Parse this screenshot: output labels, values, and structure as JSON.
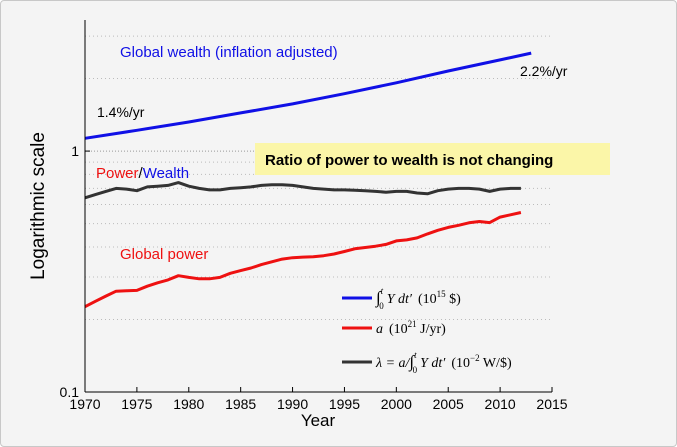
{
  "chart_data": {
    "type": "line",
    "title": "",
    "xlabel": "Year",
    "ylabel": "Logarithmic scale",
    "x_scale": "linear",
    "y_scale": "log",
    "xlim": [
      1970,
      2015
    ],
    "ylim": [
      0.1,
      3.5
    ],
    "x_ticks": [
      1970,
      1975,
      1980,
      1985,
      1990,
      1995,
      2000,
      2005,
      2010,
      2015
    ],
    "x_tick_labels": [
      "1970",
      "1975",
      "1980",
      "1985",
      "1990",
      "1995",
      "2000",
      "2005",
      "2010",
      "2015"
    ],
    "y_ticks": [
      0.1,
      1
    ],
    "y_tick_labels": [
      "0.1",
      "1"
    ],
    "grid": "y-dotted",
    "legend_position": "bottom-right",
    "series": [
      {
        "name": "∫₀ᵗ Y dt′ (10¹⁵ $)",
        "color": "#1010e6",
        "x": [
          1970,
          1975,
          1980,
          1985,
          1990,
          1995,
          2000,
          2005,
          2010,
          2013
        ],
        "values": [
          1.13,
          1.22,
          1.32,
          1.44,
          1.57,
          1.73,
          1.92,
          2.15,
          2.39,
          2.55
        ]
      },
      {
        "name": "a (10²¹ J/yr)",
        "color": "#ee1111",
        "x": [
          1970,
          1971,
          1972,
          1973,
          1974,
          1975,
          1976,
          1977,
          1978,
          1979,
          1980,
          1981,
          1982,
          1983,
          1984,
          1985,
          1986,
          1987,
          1988,
          1989,
          1990,
          1991,
          1992,
          1993,
          1994,
          1995,
          1996,
          1997,
          1998,
          1999,
          2000,
          2001,
          2002,
          2003,
          2004,
          2005,
          2006,
          2007,
          2008,
          2009,
          2010,
          2011,
          2012
        ],
        "values": [
          0.226,
          0.238,
          0.25,
          0.262,
          0.263,
          0.264,
          0.275,
          0.284,
          0.292,
          0.304,
          0.299,
          0.295,
          0.295,
          0.299,
          0.311,
          0.319,
          0.327,
          0.338,
          0.347,
          0.356,
          0.361,
          0.363,
          0.364,
          0.368,
          0.374,
          0.383,
          0.393,
          0.398,
          0.403,
          0.41,
          0.424,
          0.428,
          0.436,
          0.453,
          0.469,
          0.482,
          0.492,
          0.504,
          0.51,
          0.505,
          0.532,
          0.544,
          0.556
        ]
      },
      {
        "name": "λ = a/∫₀ᵗ Y dt′ (10⁻² W/$)",
        "color": "#333333",
        "x": [
          1970,
          1971,
          1972,
          1973,
          1974,
          1975,
          1976,
          1977,
          1978,
          1979,
          1980,
          1981,
          1982,
          1983,
          1984,
          1985,
          1986,
          1987,
          1988,
          1989,
          1990,
          1991,
          1992,
          1993,
          1994,
          1995,
          1996,
          1997,
          1998,
          1999,
          2000,
          2001,
          2002,
          2003,
          2004,
          2005,
          2006,
          2007,
          2008,
          2009,
          2010,
          2011,
          2012
        ],
        "values": [
          0.64,
          0.66,
          0.68,
          0.7,
          0.695,
          0.685,
          0.71,
          0.715,
          0.72,
          0.74,
          0.715,
          0.7,
          0.69,
          0.69,
          0.7,
          0.705,
          0.71,
          0.72,
          0.725,
          0.725,
          0.72,
          0.71,
          0.7,
          0.695,
          0.69,
          0.69,
          0.688,
          0.685,
          0.68,
          0.675,
          0.68,
          0.68,
          0.67,
          0.665,
          0.685,
          0.695,
          0.7,
          0.7,
          0.695,
          0.68,
          0.695,
          0.7,
          0.7
        ]
      }
    ],
    "annotations": [
      {
        "id": "wealth-label",
        "text": "Global wealth (inflation adjusted)",
        "color": "#1010e6"
      },
      {
        "id": "rate-end",
        "text": "2.2%/yr",
        "color": "#000000"
      },
      {
        "id": "rate-start",
        "text": "1.4%/yr",
        "color": "#000000"
      },
      {
        "id": "ratio-callout",
        "text": "Ratio of power to wealth is not changing",
        "color": "#000000",
        "background": "#fbf6a8"
      },
      {
        "id": "global-power",
        "text": "Global power",
        "color": "#ee1111"
      }
    ],
    "power_wealth_label": {
      "part1": {
        "text": "Power",
        "color": "#ee1111"
      },
      "sep": {
        "text": "/",
        "color": "#000000"
      },
      "part2": {
        "text": "Wealth",
        "color": "#1010e6"
      }
    },
    "legend_entries": [
      {
        "integral": "∫",
        "lower": "0",
        "upper": "t",
        "body": "Y dt′",
        "unit": "(10",
        "unit_exp": "15",
        "unit_tail": " $)"
      },
      {
        "body": "a",
        "unit": "(10",
        "unit_exp": "21",
        "unit_tail": " J/yr)"
      },
      {
        "pre": "λ = a/",
        "integral": "∫",
        "lower": "0",
        "upper": "t",
        "body": "Y dt′",
        "unit": "(10",
        "unit_exp": "−2",
        "unit_tail": " W/$)"
      }
    ]
  }
}
